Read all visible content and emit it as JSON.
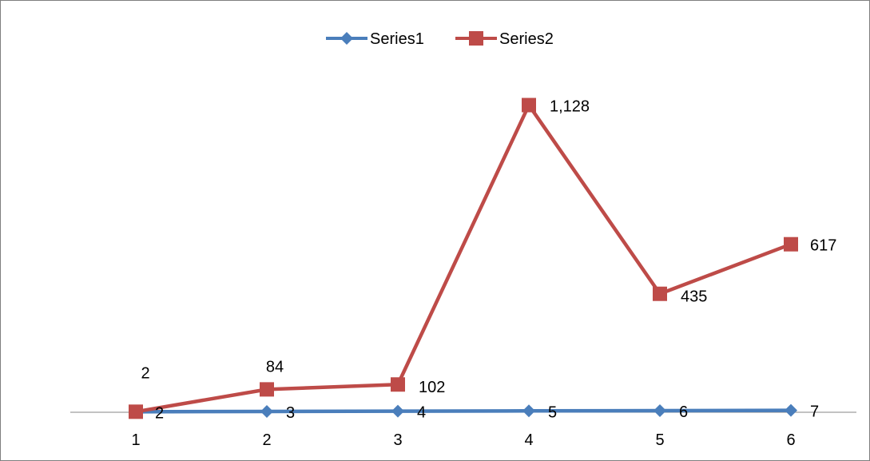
{
  "chart_data": {
    "type": "line",
    "categories": [
      "1",
      "2",
      "3",
      "4",
      "5",
      "6"
    ],
    "series": [
      {
        "name": "Series1",
        "values": [
          2,
          3,
          4,
          5,
          6,
          7
        ],
        "labels": [
          "2",
          "3",
          "4",
          "5",
          "6",
          "7"
        ],
        "color": "#4a7ebb",
        "marker": "diamond"
      },
      {
        "name": "Series2",
        "values": [
          2,
          84,
          102,
          1128,
          435,
          617
        ],
        "labels": [
          "2",
          "84",
          "102",
          "1,128",
          "435",
          "617"
        ],
        "color": "#be4b48",
        "marker": "square"
      }
    ],
    "ylim": [
      0,
      1200
    ],
    "grid": false,
    "legend_position": "top"
  }
}
